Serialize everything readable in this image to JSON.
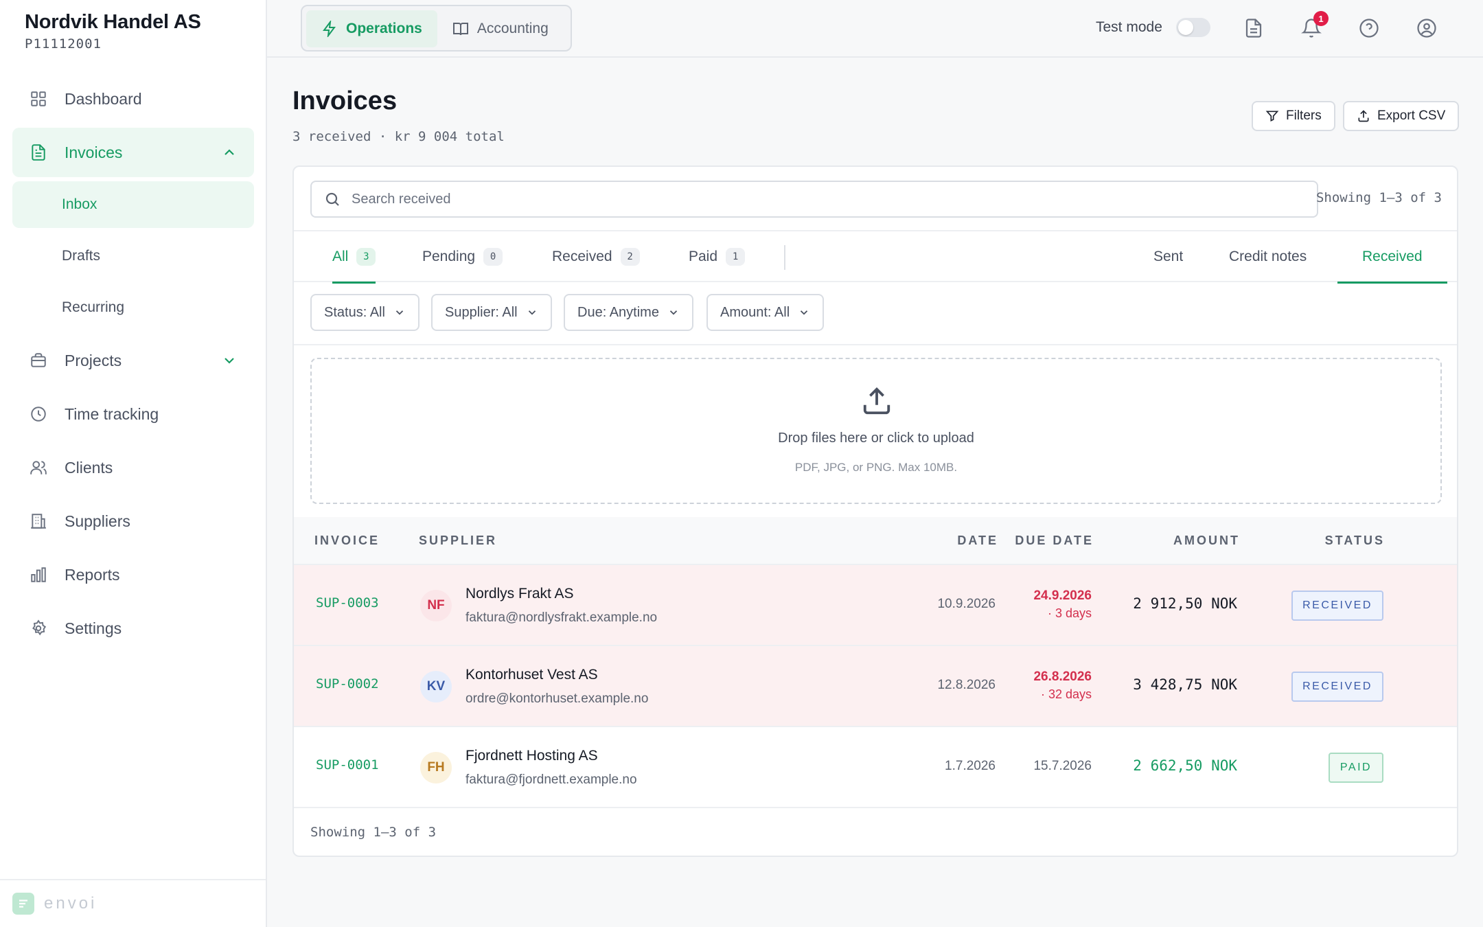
{
  "company": {
    "name": "Nordvik Handel AS",
    "id": "P11112001"
  },
  "nav": {
    "items": [
      {
        "label": "Dashboard"
      },
      {
        "label": "Invoices"
      },
      {
        "label": "Projects"
      },
      {
        "label": "Time tracking"
      },
      {
        "label": "Clients"
      },
      {
        "label": "Suppliers"
      },
      {
        "label": "Reports"
      },
      {
        "label": "Settings"
      }
    ],
    "invoice_sub": [
      "Inbox",
      "Drafts",
      "Recurring"
    ]
  },
  "footer": {
    "logo_text": "envoi"
  },
  "topbar": {
    "modes": [
      "Operations",
      "Accounting"
    ],
    "test_mode_label": "Test mode",
    "notification_count": "1"
  },
  "header": {
    "title": "Invoices",
    "subtitle": "3 received · kr 9 004 total",
    "filters_label": "Filters",
    "export_label": "Export CSV"
  },
  "search": {
    "placeholder": "Search received",
    "showing": "Showing 1–3 of 3"
  },
  "tabs": {
    "status": [
      {
        "label": "All",
        "count": "3"
      },
      {
        "label": "Pending",
        "count": "0"
      },
      {
        "label": "Received",
        "count": "2"
      },
      {
        "label": "Paid",
        "count": "1"
      }
    ],
    "types": [
      "Sent",
      "Credit notes",
      "Received"
    ]
  },
  "filters": [
    "Status: All",
    "Supplier: All",
    "Due: Anytime",
    "Amount: All"
  ],
  "dropzone": {
    "main": "Drop files here or click to upload",
    "sub": "PDF, JPG, or PNG. Max 10MB."
  },
  "table": {
    "columns": [
      "INVOICE",
      "SUPPLIER",
      "DATE",
      "DUE DATE",
      "AMOUNT",
      "STATUS"
    ],
    "rows": [
      {
        "invoice": "SUP-0003",
        "initials": "NF",
        "supplier": "Nordlys Frakt AS",
        "email": "faktura@nordlysfrakt.example.no",
        "date": "10.9.2026",
        "due": "24.9.2026",
        "due_rel": "· 3 days",
        "amount": "2 912,50 NOK",
        "status": "RECEIVED"
      },
      {
        "invoice": "SUP-0002",
        "initials": "KV",
        "supplier": "Kontorhuset Vest AS",
        "email": "ordre@kontorhuset.example.no",
        "date": "12.8.2026",
        "due": "26.8.2026",
        "due_rel": "· 32 days",
        "amount": "3 428,75 NOK",
        "status": "RECEIVED"
      },
      {
        "invoice": "SUP-0001",
        "initials": "FH",
        "supplier": "Fjordnett Hosting AS",
        "email": "faktura@fjordnett.example.no",
        "date": "1.7.2026",
        "due": "15.7.2026",
        "due_rel": "",
        "amount": "2 662,50 NOK",
        "status": "PAID"
      }
    ],
    "footer": "Showing 1–3 of 3"
  },
  "colors": {
    "accent": "#169b62",
    "danger": "#d32f4d",
    "overdue_row": "#fcf0f1"
  }
}
